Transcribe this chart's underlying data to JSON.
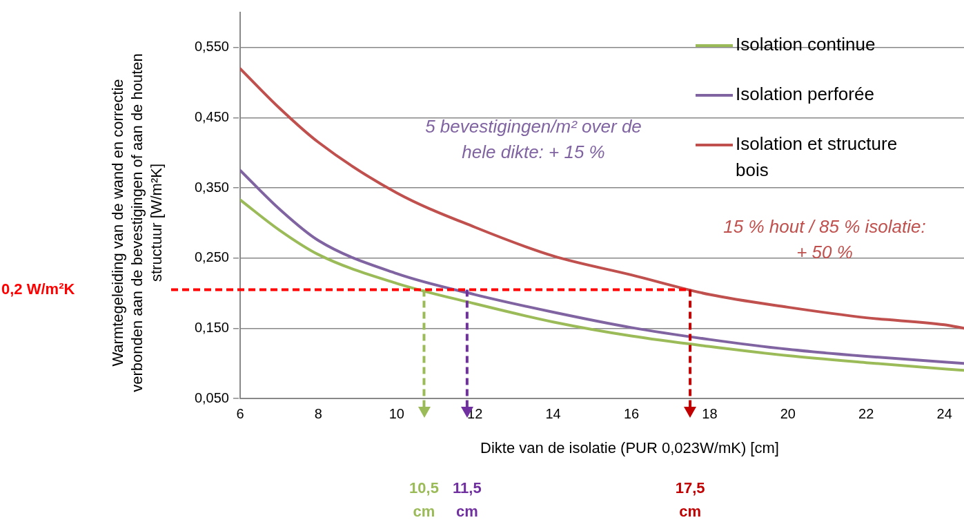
{
  "chart_data": {
    "type": "line",
    "xlabel": "Dikte van de isolatie (PUR 0,023W/mK) [cm]",
    "ylabel": "Warmtegeleiding van de wand en correctie verbonden aan de bevestigingen of aan de houten structuur [W/m²K]",
    "x": [
      6,
      7,
      8,
      10,
      12,
      14,
      16,
      18,
      20,
      22,
      24,
      24.5
    ],
    "series": [
      {
        "name": "Isolation continue",
        "color": "#9bbb59",
        "values": [
          0.333,
          0.29,
          0.255,
          0.214,
          0.185,
          0.159,
          0.139,
          0.124,
          0.111,
          0.101,
          0.092,
          0.09
        ]
      },
      {
        "name": "Isolation perforée",
        "color": "#8064a2",
        "values": [
          0.375,
          0.32,
          0.275,
          0.228,
          0.198,
          0.173,
          0.151,
          0.134,
          0.12,
          0.11,
          0.102,
          0.1
        ]
      },
      {
        "name": "Isolation et structure bois",
        "color": "#c0504d",
        "values": [
          0.52,
          0.464,
          0.415,
          0.343,
          0.294,
          0.253,
          0.226,
          0.198,
          0.18,
          0.165,
          0.155,
          0.15
        ]
      }
    ],
    "xlim": [
      6,
      24.5
    ],
    "ylim": [
      0.05,
      0.6
    ],
    "xticks": [
      6,
      8,
      10,
      12,
      14,
      16,
      18,
      20,
      22,
      24
    ],
    "yticks": [
      {
        "value": 0.05,
        "label": "0,050"
      },
      {
        "value": 0.15,
        "label": "0,150"
      },
      {
        "value": 0.25,
        "label": "0,250"
      },
      {
        "value": 0.35,
        "label": "0,350"
      },
      {
        "value": 0.45,
        "label": "0,450"
      },
      {
        "value": 0.55,
        "label": "0,550"
      }
    ],
    "grid": "y",
    "legend": "top right",
    "marker": "none",
    "line_style": "solid",
    "ref_lines": [
      {
        "axis": "y",
        "value": 0.205,
        "label": "0,2 W/m²K",
        "color": "#ff0000",
        "line_style": "dashed"
      },
      {
        "axis": "x",
        "value": 10.7,
        "color": "#9bbb59",
        "line_style": "dashed"
      },
      {
        "axis": "x",
        "value": 11.8,
        "color": "#7030a0",
        "line_style": "dashed"
      },
      {
        "axis": "x",
        "value": 17.5,
        "color": "#c00000",
        "line_style": "dashed"
      }
    ],
    "annotations": [
      "5 bevestigingen/m² over de hele dikte: + 15 %",
      "15 % hout / 85 % isolatie: + 50 %",
      "10,5 cm",
      "11,5 cm",
      "17,5 cm"
    ]
  }
}
